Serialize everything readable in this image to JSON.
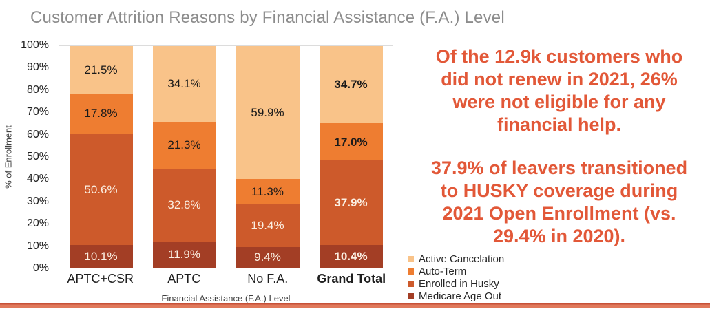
{
  "title": "Customer Attrition Reasons by Financial Assistance (F.A.) Level",
  "chart_data": {
    "type": "bar",
    "stacked": true,
    "title": "Customer Attrition Reasons by Financial Assistance (F.A.) Level",
    "categories": [
      "APTC+CSR",
      "APTC",
      "No F.A.",
      "Grand Total"
    ],
    "bold_category": "Grand Total",
    "series": [
      {
        "name": "Active Cancelation",
        "color": "#f9c389",
        "label_color": "#1a1a1a",
        "values": [
          21.5,
          34.1,
          59.9,
          34.7
        ]
      },
      {
        "name": "Auto-Term",
        "color": "#ee7d31",
        "label_color": "#1a1a1a",
        "values": [
          17.8,
          21.3,
          11.3,
          17.0
        ]
      },
      {
        "name": "Enrolled in Husky",
        "color": "#cd5a2b",
        "label_color": "#fbefe2",
        "values": [
          50.6,
          32.8,
          19.4,
          37.9
        ]
      },
      {
        "name": "Medicare Age Out",
        "color": "#a33e25",
        "label_color": "#fbefe2",
        "values": [
          10.1,
          11.9,
          9.4,
          10.4
        ]
      }
    ],
    "xlabel": "Financial Assistance (F.A.) Level",
    "ylabel": "% of Enrollment",
    "ylim": [
      0,
      100
    ],
    "y_ticks": [
      "0%",
      "10%",
      "20%",
      "30%",
      "40%",
      "50%",
      "60%",
      "70%",
      "80%",
      "90%",
      "100%"
    ],
    "grid": false,
    "legend_position": "bottom-right",
    "value_suffix": "%"
  },
  "insights": {
    "text_color": "#e25838",
    "paragraph1_lines": [
      "Of the 12.9k customers who",
      "did not renew in 2021, 26%",
      "were not eligible for any",
      "financial help."
    ],
    "paragraph2_lines": [
      "37.9% of leavers transitioned",
      "to HUSKY coverage during",
      "2021 Open Enrollment (vs.",
      "29.4% in 2020)."
    ]
  },
  "colors": {
    "title_gray": "#8c8c8c",
    "axis_border": "#dcdcdc",
    "strip_top": "#c75138",
    "strip_bottom": "#e0795b"
  }
}
